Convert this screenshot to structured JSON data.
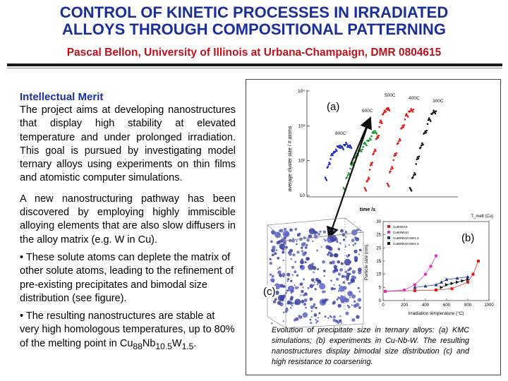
{
  "header": {
    "title_line1": "CONTROL OF KINETIC PROCESSES IN IRRADIATED",
    "title_line2": "ALLOYS THROUGH COMPOSITIONAL PATTERNING",
    "subtitle": "Pascal Bellon, University of Illinois at Urbana-Champaign, DMR 0804615"
  },
  "intro": {
    "heading": "Intellectual Merit",
    "paragraph": "The project aims at developing nanostructures that display high stability at elevated temperature and under prolonged irradiation. This goal is pursued by investigating model ternary alloys using experiments on thin films and atomistic computer simulations."
  },
  "discovery": "A new nanostructuring pathway has been discovered by employing highly immiscible alloying elements that are also slow diffusers in the alloy matrix (e.g. W in Cu).",
  "bullets": {
    "b1": "• These solute atoms can deplete the matrix of other solute atoms, leading to the refinement of pre-existing precipitates and bimodal size distribution (see figure).",
    "b2_prefix": "• The resulting nanostructures are stable at very high homologous temperatures, up to 80% of the melting point in Cu",
    "b2_sub1": "88",
    "b2_nb": "Nb",
    "b2_sub2": "10.5",
    "b2_w": "W",
    "b2_sub3": "1.5",
    "b2_end": "."
  },
  "figure": {
    "label_a": "(a)",
    "label_b": "(b)",
    "label_c": "(c)",
    "caption": "Evolution of precipitate size in ternary alloys: (a) KMC simulations; (b) experiments in Cu-Nb-W. The resulting nanostructures display bimodal size distribution (c) and high resistance to coarsening."
  },
  "chart_data": [
    {
      "type": "scatter",
      "title": "",
      "xlabel": "time /s",
      "ylabel": "average cluster size / # atoms",
      "yscale": "log",
      "ylim": [
        10,
        10000
      ],
      "y_tick_labels": [
        "10",
        "10²",
        "10³",
        "10⁴"
      ],
      "series": [
        {
          "name": "800C",
          "color": "#1f2fbf",
          "values": [
            30,
            80,
            150,
            200,
            260,
            230,
            300,
            250
          ]
        },
        {
          "name": "600C",
          "color": "#1a9a2a",
          "values": [
            15,
            40,
            80,
            150,
            200,
            300,
            400,
            650
          ]
        },
        {
          "name": "500C",
          "color": "#e01818",
          "values": [
            15,
            30,
            80,
            200,
            500,
            1300,
            2500,
            3000
          ]
        },
        {
          "name": "400C",
          "color": "#e01818",
          "values": [
            20,
            60,
            150,
            400,
            1000,
            2000,
            2800
          ]
        },
        {
          "name": "300C",
          "color": "#111111",
          "values": [
            15,
            40,
            120,
            300,
            700,
            1500,
            2500
          ]
        }
      ]
    },
    {
      "type": "line",
      "title": "",
      "xlabel": "Irradiation temperature (°C)",
      "ylabel": "Particle size (nm)",
      "xlim": [
        0,
        1000
      ],
      "ylim": [
        0,
        30
      ],
      "x_ticks": [
        "0",
        "200",
        "400",
        "600",
        "800",
        "1000"
      ],
      "y_ticks": [
        "0",
        "5",
        "10",
        "15",
        "20",
        "25",
        "30"
      ],
      "annotation": "T_melt (Cu)",
      "series": [
        {
          "name": "Cu90W10",
          "color": "#e01818",
          "x": [
            20,
            300,
            500,
            650,
            800,
            850,
            900
          ],
          "y": [
            3.5,
            3.8,
            4,
            4.5,
            7,
            10,
            15
          ]
        },
        {
          "name": "Cu90Nb10",
          "color": "#e030c0",
          "x": [
            20,
            200,
            300,
            400,
            450,
            500
          ],
          "y": [
            3.5,
            4,
            6,
            10,
            13,
            17
          ]
        },
        {
          "name": "Cu88Nb10.5W1.5",
          "color": "#1a2f9a",
          "x": [
            300,
            400,
            500,
            550,
            600,
            700,
            800
          ],
          "y": [
            5,
            5.5,
            6,
            7,
            8,
            8.5,
            9
          ]
        },
        {
          "name": "Cu88Nb10.5W1.5 (2)",
          "color": "#111111",
          "x": [
            550,
            600,
            650,
            700,
            750,
            800
          ],
          "y": [
            5,
            6,
            6.5,
            7,
            7.5,
            8
          ]
        }
      ],
      "legend": [
        "Cu90W10",
        "Cu90Nb10",
        "Cu88Nb10.5W1.5",
        "Cu88Nb10.5W1.5"
      ]
    }
  ]
}
